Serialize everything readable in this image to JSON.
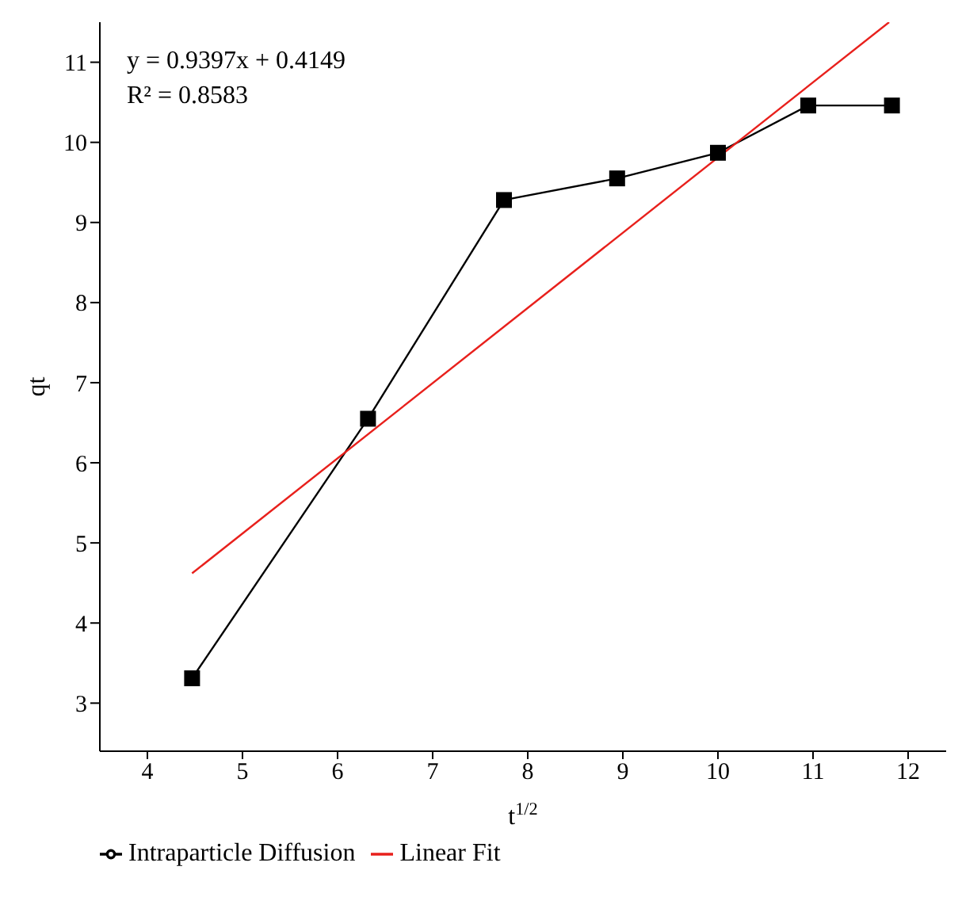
{
  "chart_data": {
    "type": "line",
    "xlabel": "t$^{1/2}$",
    "ylabel": "qt",
    "annotations": [
      "y = 0.9397x + 0.4149",
      "R² = 0.8583"
    ],
    "xlim": [
      3.5,
      12.4
    ],
    "xticks": [
      4,
      5,
      6,
      7,
      8,
      9,
      10,
      11,
      12
    ],
    "ylim": [
      2.4,
      11.5
    ],
    "yticks": [
      3,
      4,
      5,
      6,
      7,
      8,
      9,
      10,
      11
    ],
    "grid": false,
    "legend": "bottom left",
    "series": [
      {
        "name": "Intraparticle Diffusion",
        "color": "#000000",
        "marker": "square",
        "x": [
          4.47,
          6.32,
          7.75,
          8.94,
          10,
          10.95,
          11.83
        ],
        "values": [
          3.31,
          6.55,
          9.28,
          9.55,
          9.87,
          10.46,
          10.46
        ]
      },
      {
        "name": "Linear Fit",
        "color": "#e8201c",
        "marker": "none",
        "x": [
          4.47,
          11.8
        ],
        "values": [
          4.62,
          11.5
        ]
      }
    ]
  }
}
